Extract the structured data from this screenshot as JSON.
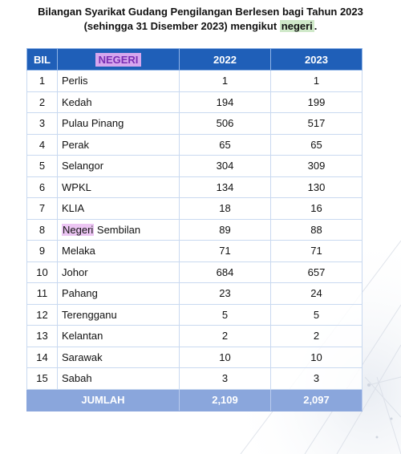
{
  "title": {
    "line1": "Bilangan Syarikat Gudang Pengilangan Berlesen bagi Tahun 2023",
    "line2_prefix": "(sehingga 31 Disember 2023) mengikut",
    "line2_highlight": "negeri",
    "line2_suffix": "."
  },
  "table": {
    "headers": {
      "bil": "BIL",
      "negeri": "NEGERI",
      "year1": "2022",
      "year2": "2023"
    },
    "rows": [
      {
        "bil": "1",
        "negeri": "Perlis",
        "y2022": "1",
        "y2023": "1"
      },
      {
        "bil": "2",
        "negeri": "Kedah",
        "y2022": "194",
        "y2023": "199"
      },
      {
        "bil": "3",
        "negeri": "Pulau Pinang",
        "y2022": "506",
        "y2023": "517"
      },
      {
        "bil": "4",
        "negeri": "Perak",
        "y2022": "65",
        "y2023": "65"
      },
      {
        "bil": "5",
        "negeri": "Selangor",
        "y2022": "304",
        "y2023": "309"
      },
      {
        "bil": "6",
        "negeri": "WPKL",
        "y2022": "134",
        "y2023": "130"
      },
      {
        "bil": "7",
        "negeri": "KLIA",
        "y2022": "18",
        "y2023": "16"
      },
      {
        "bil": "8",
        "negeri_highlight": "Negeri",
        "negeri_rest": " Sembilan",
        "y2022": "89",
        "y2023": "88"
      },
      {
        "bil": "9",
        "negeri": "Melaka",
        "y2022": "71",
        "y2023": "71"
      },
      {
        "bil": "10",
        "negeri": "Johor",
        "y2022": "684",
        "y2023": "657"
      },
      {
        "bil": "11",
        "negeri": "Pahang",
        "y2022": "23",
        "y2023": "24"
      },
      {
        "bil": "12",
        "negeri": "Terengganu",
        "y2022": "5",
        "y2023": "5"
      },
      {
        "bil": "13",
        "negeri": "Kelantan",
        "y2022": "2",
        "y2023": "2"
      },
      {
        "bil": "14",
        "negeri": "Sarawak",
        "y2022": "10",
        "y2023": "10"
      },
      {
        "bil": "15",
        "negeri": "Sabah",
        "y2022": "3",
        "y2023": "3"
      }
    ],
    "total": {
      "label": "JUMLAH",
      "y2022": "2,109",
      "y2023": "2,097"
    }
  },
  "colors": {
    "header_bg": "#1f5fb8",
    "total_bg": "#8aa6dc",
    "highlight_green": "#cfe9c9",
    "highlight_purple": "#ecc5f3"
  }
}
